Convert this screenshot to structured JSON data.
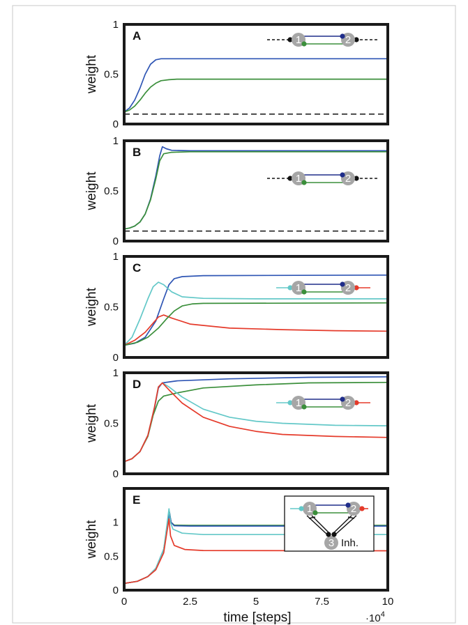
{
  "figure": {
    "x_axis_label": "time [steps]",
    "x_multiplier": "·10",
    "x_multiplier_exp": "4",
    "x_ticks": [
      "0",
      "2.5",
      "5",
      "7.5",
      "10"
    ],
    "colors": {
      "blue": "#2e55b4",
      "green": "#3b8f3b",
      "cyan": "#63c8c8",
      "red": "#e53a2a",
      "node": "#a6a6a6",
      "dark_blue_dot": "#1f2d8a",
      "black": "#111111"
    },
    "node_labels": {
      "n1": "1",
      "n2": "2",
      "n3": "3",
      "inh": "Inh."
    }
  },
  "chart_data": [
    {
      "type": "line",
      "panel": "A",
      "xlabel": "",
      "ylabel": "weight",
      "xlim": [
        0,
        10
      ],
      "ylim": [
        0,
        1
      ],
      "y_ticks": [
        "0",
        "0.5",
        "1"
      ],
      "inset": "dashed",
      "series": [
        {
          "color": "blue",
          "style": "solid",
          "points": [
            [
              0,
              0.12
            ],
            [
              0.2,
              0.16
            ],
            [
              0.4,
              0.24
            ],
            [
              0.6,
              0.36
            ],
            [
              0.8,
              0.5
            ],
            [
              1,
              0.6
            ],
            [
              1.2,
              0.645
            ],
            [
              1.4,
              0.655
            ],
            [
              2,
              0.655
            ],
            [
              10,
              0.655
            ]
          ]
        },
        {
          "color": "green",
          "style": "solid",
          "points": [
            [
              0,
              0.12
            ],
            [
              0.2,
              0.14
            ],
            [
              0.4,
              0.18
            ],
            [
              0.6,
              0.24
            ],
            [
              0.8,
              0.31
            ],
            [
              1,
              0.37
            ],
            [
              1.2,
              0.41
            ],
            [
              1.4,
              0.435
            ],
            [
              1.7,
              0.445
            ],
            [
              2,
              0.45
            ],
            [
              10,
              0.45
            ]
          ]
        },
        {
          "color": "black",
          "style": "dashed",
          "points": [
            [
              0,
              0.1
            ],
            [
              10,
              0.1
            ]
          ]
        }
      ]
    },
    {
      "type": "line",
      "panel": "B",
      "xlabel": "",
      "ylabel": "weight",
      "xlim": [
        0,
        10
      ],
      "ylim": [
        0,
        1
      ],
      "y_ticks": [
        "0",
        "0.5",
        "1"
      ],
      "inset": "dashed",
      "series": [
        {
          "color": "blue",
          "style": "solid",
          "points": [
            [
              0,
              0.12
            ],
            [
              0.2,
              0.13
            ],
            [
              0.4,
              0.15
            ],
            [
              0.6,
              0.19
            ],
            [
              0.8,
              0.27
            ],
            [
              1,
              0.42
            ],
            [
              1.2,
              0.65
            ],
            [
              1.35,
              0.85
            ],
            [
              1.45,
              0.94
            ],
            [
              1.6,
              0.92
            ],
            [
              1.8,
              0.905
            ],
            [
              2.5,
              0.9
            ],
            [
              10,
              0.9
            ]
          ]
        },
        {
          "color": "green",
          "style": "solid",
          "points": [
            [
              0,
              0.12
            ],
            [
              0.2,
              0.13
            ],
            [
              0.4,
              0.15
            ],
            [
              0.6,
              0.19
            ],
            [
              0.8,
              0.27
            ],
            [
              1,
              0.41
            ],
            [
              1.2,
              0.62
            ],
            [
              1.35,
              0.8
            ],
            [
              1.5,
              0.87
            ],
            [
              1.8,
              0.885
            ],
            [
              2.5,
              0.89
            ],
            [
              10,
              0.89
            ]
          ]
        },
        {
          "color": "black",
          "style": "dashed",
          "points": [
            [
              0,
              0.1
            ],
            [
              10,
              0.1
            ]
          ]
        }
      ]
    },
    {
      "type": "line",
      "panel": "C",
      "xlabel": "",
      "ylabel": "weight",
      "xlim": [
        0,
        10
      ],
      "ylim": [
        0,
        1
      ],
      "y_ticks": [
        "0",
        "0.5",
        "1"
      ],
      "inset": "colored",
      "series": [
        {
          "color": "blue",
          "style": "solid",
          "points": [
            [
              0,
              0.12
            ],
            [
              0.4,
              0.14
            ],
            [
              0.8,
              0.2
            ],
            [
              1.2,
              0.36
            ],
            [
              1.5,
              0.58
            ],
            [
              1.7,
              0.72
            ],
            [
              1.9,
              0.78
            ],
            [
              2.2,
              0.8
            ],
            [
              3,
              0.81
            ],
            [
              10,
              0.815
            ]
          ]
        },
        {
          "color": "cyan",
          "style": "solid",
          "points": [
            [
              0,
              0.12
            ],
            [
              0.3,
              0.2
            ],
            [
              0.6,
              0.38
            ],
            [
              0.9,
              0.58
            ],
            [
              1.1,
              0.7
            ],
            [
              1.3,
              0.745
            ],
            [
              1.5,
              0.72
            ],
            [
              1.8,
              0.65
            ],
            [
              2.2,
              0.6
            ],
            [
              3,
              0.585
            ],
            [
              5,
              0.58
            ],
            [
              10,
              0.58
            ]
          ]
        },
        {
          "color": "red",
          "style": "solid",
          "points": [
            [
              0,
              0.12
            ],
            [
              0.4,
              0.17
            ],
            [
              0.8,
              0.25
            ],
            [
              1.1,
              0.34
            ],
            [
              1.3,
              0.4
            ],
            [
              1.5,
              0.42
            ],
            [
              1.8,
              0.39
            ],
            [
              2.5,
              0.33
            ],
            [
              4,
              0.29
            ],
            [
              6,
              0.275
            ],
            [
              8,
              0.265
            ],
            [
              10,
              0.26
            ]
          ]
        },
        {
          "color": "green",
          "style": "solid",
          "points": [
            [
              0,
              0.12
            ],
            [
              0.5,
              0.15
            ],
            [
              0.9,
              0.2
            ],
            [
              1.3,
              0.29
            ],
            [
              1.6,
              0.38
            ],
            [
              1.9,
              0.46
            ],
            [
              2.2,
              0.51
            ],
            [
              2.6,
              0.53
            ],
            [
              3,
              0.535
            ],
            [
              10,
              0.54
            ]
          ]
        }
      ]
    },
    {
      "type": "line",
      "panel": "D",
      "xlabel": "",
      "ylabel": "weight",
      "xlim": [
        0,
        10
      ],
      "ylim": [
        0,
        1
      ],
      "y_ticks": [
        "0",
        "0.5",
        "1"
      ],
      "inset": "colored",
      "series": [
        {
          "color": "blue",
          "style": "solid",
          "points": [
            [
              0,
              0.12
            ],
            [
              0.3,
              0.15
            ],
            [
              0.6,
              0.22
            ],
            [
              0.9,
              0.38
            ],
            [
              1.15,
              0.65
            ],
            [
              1.3,
              0.85
            ],
            [
              1.45,
              0.9
            ],
            [
              2,
              0.92
            ],
            [
              4,
              0.94
            ],
            [
              7,
              0.955
            ],
            [
              10,
              0.96
            ]
          ]
        },
        {
          "color": "green",
          "style": "solid",
          "points": [
            [
              0,
              0.12
            ],
            [
              0.3,
              0.15
            ],
            [
              0.6,
              0.22
            ],
            [
              0.9,
              0.37
            ],
            [
              1.1,
              0.58
            ],
            [
              1.3,
              0.72
            ],
            [
              1.5,
              0.77
            ],
            [
              2,
              0.8
            ],
            [
              3,
              0.85
            ],
            [
              5,
              0.88
            ],
            [
              7,
              0.9
            ],
            [
              10,
              0.905
            ]
          ]
        },
        {
          "color": "cyan",
          "style": "solid",
          "points": [
            [
              0,
              0.12
            ],
            [
              0.3,
              0.15
            ],
            [
              0.6,
              0.22
            ],
            [
              0.9,
              0.38
            ],
            [
              1.15,
              0.66
            ],
            [
              1.3,
              0.86
            ],
            [
              1.45,
              0.9
            ],
            [
              1.7,
              0.86
            ],
            [
              2.2,
              0.76
            ],
            [
              3,
              0.64
            ],
            [
              4,
              0.56
            ],
            [
              5,
              0.52
            ],
            [
              6,
              0.5
            ],
            [
              8,
              0.48
            ],
            [
              10,
              0.475
            ]
          ]
        },
        {
          "color": "red",
          "style": "solid",
          "points": [
            [
              0,
              0.12
            ],
            [
              0.3,
              0.15
            ],
            [
              0.6,
              0.22
            ],
            [
              0.9,
              0.38
            ],
            [
              1.15,
              0.66
            ],
            [
              1.3,
              0.86
            ],
            [
              1.45,
              0.9
            ],
            [
              1.7,
              0.83
            ],
            [
              2.2,
              0.7
            ],
            [
              3,
              0.56
            ],
            [
              4,
              0.47
            ],
            [
              5,
              0.42
            ],
            [
              6,
              0.39
            ],
            [
              8,
              0.37
            ],
            [
              10,
              0.36
            ]
          ]
        }
      ]
    },
    {
      "type": "line",
      "panel": "E",
      "xlabel": "time [steps]",
      "ylabel": "weight",
      "xlim": [
        0,
        10
      ],
      "ylim": [
        0,
        1.5
      ],
      "y_ticks": [
        "0",
        "0.5",
        "1"
      ],
      "inset": "inhibitory",
      "series": [
        {
          "color": "green",
          "style": "solid",
          "points": [
            [
              0,
              0.1
            ],
            [
              0.5,
              0.13
            ],
            [
              0.9,
              0.2
            ],
            [
              1.2,
              0.32
            ],
            [
              1.5,
              0.6
            ],
            [
              1.65,
              0.95
            ],
            [
              1.72,
              1.15
            ],
            [
              1.78,
              1.0
            ],
            [
              1.9,
              0.96
            ],
            [
              2.5,
              0.955
            ],
            [
              10,
              0.955
            ]
          ]
        },
        {
          "color": "blue",
          "style": "solid",
          "points": [
            [
              0,
              0.1
            ],
            [
              0.5,
              0.13
            ],
            [
              0.9,
              0.2
            ],
            [
              1.2,
              0.32
            ],
            [
              1.5,
              0.6
            ],
            [
              1.65,
              0.95
            ],
            [
              1.72,
              1.15
            ],
            [
              1.78,
              1.0
            ],
            [
              1.9,
              0.95
            ],
            [
              2.5,
              0.945
            ],
            [
              10,
              0.945
            ]
          ]
        },
        {
          "color": "cyan",
          "style": "solid",
          "points": [
            [
              0,
              0.1
            ],
            [
              0.5,
              0.13
            ],
            [
              0.9,
              0.2
            ],
            [
              1.2,
              0.32
            ],
            [
              1.5,
              0.6
            ],
            [
              1.62,
              0.95
            ],
            [
              1.7,
              1.2
            ],
            [
              1.76,
              1.0
            ],
            [
              1.85,
              0.9
            ],
            [
              2.2,
              0.84
            ],
            [
              3,
              0.82
            ],
            [
              10,
              0.82
            ]
          ]
        },
        {
          "color": "red",
          "style": "solid",
          "points": [
            [
              0,
              0.1
            ],
            [
              0.5,
              0.13
            ],
            [
              0.9,
              0.2
            ],
            [
              1.2,
              0.3
            ],
            [
              1.5,
              0.55
            ],
            [
              1.62,
              0.85
            ],
            [
              1.7,
              1.05
            ],
            [
              1.76,
              0.8
            ],
            [
              1.9,
              0.66
            ],
            [
              2.3,
              0.6
            ],
            [
              3,
              0.585
            ],
            [
              10,
              0.58
            ]
          ]
        }
      ]
    }
  ]
}
